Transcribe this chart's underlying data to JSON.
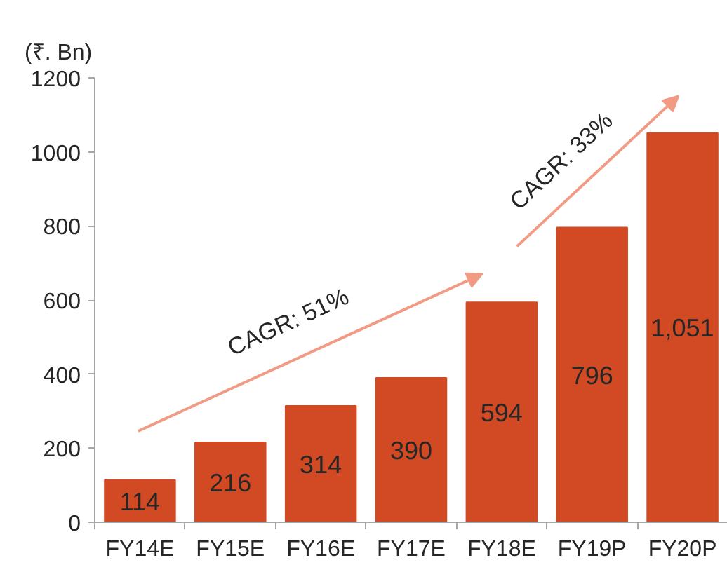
{
  "chart_data": {
    "type": "bar",
    "ylabel": "(₹. Bn)",
    "categories": [
      "FY14E",
      "FY15E",
      "FY16E",
      "FY17E",
      "FY18E",
      "FY19P",
      "FY20P"
    ],
    "values": [
      114,
      216,
      314,
      390,
      594,
      796,
      1051
    ],
    "value_labels": [
      "114",
      "216",
      "314",
      "390",
      "594",
      "796",
      "1,051"
    ],
    "color": "#d14a24",
    "ylim": [
      0,
      1200
    ],
    "yticks": [
      0,
      200,
      400,
      600,
      800,
      1000,
      1200
    ],
    "annotations": [
      "CAGR: 51%",
      "CAGR: 33%"
    ]
  }
}
